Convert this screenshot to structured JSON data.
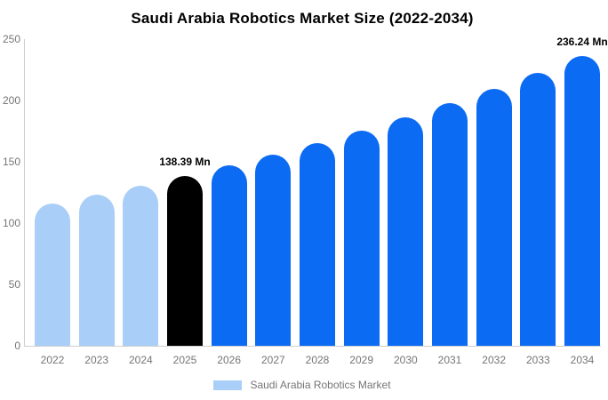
{
  "legend": {
    "label": "Saudi Arabia Robotics Market",
    "swatch_color": "#a9cef7"
  },
  "chart_data": {
    "type": "bar",
    "title": "Saudi Arabia Robotics Market Size (2022-2034)",
    "xlabel": "",
    "ylabel": "",
    "unit": "Mn",
    "categories": [
      2022,
      2023,
      2024,
      2025,
      2026,
      2027,
      2028,
      2029,
      2030,
      2031,
      2032,
      2033,
      2034
    ],
    "values": [
      115.8,
      122.89,
      130.41,
      138.39,
      146.86,
      155.85,
      165.39,
      175.52,
      186.26,
      197.66,
      209.77,
      222.61,
      236.24
    ],
    "bar_colors": [
      "light_blue",
      "light_blue",
      "light_blue",
      "black",
      "blue",
      "blue",
      "blue",
      "blue",
      "blue",
      "blue",
      "blue",
      "blue",
      "blue"
    ],
    "colors": {
      "light_blue": "#a9cef7",
      "blue": "#0b6bf2",
      "black": "#000000"
    },
    "data_labels": [
      {
        "index": 3,
        "text": "138.39 Mn"
      },
      {
        "index": 12,
        "text": "236.24 Mn"
      }
    ],
    "ylim": [
      0,
      250
    ],
    "yticks": [
      0,
      50,
      100,
      150,
      200,
      250
    ],
    "grid": false,
    "legend_position": "bottom"
  }
}
